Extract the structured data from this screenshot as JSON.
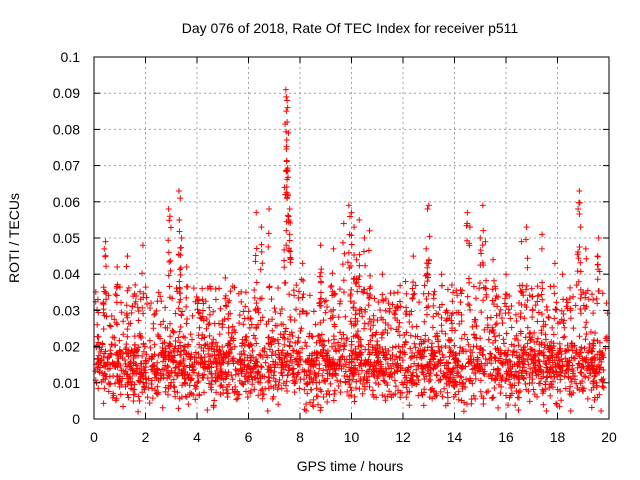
{
  "chart_data": {
    "type": "scatter",
    "title": "Day 076 of 2018, Rate Of TEC Index for receiver p511",
    "xlabel": "GPS time / hours",
    "ylabel": "ROTI / TECUs",
    "xlim": [
      0,
      20
    ],
    "ylim": [
      0,
      0.1
    ],
    "grid": true,
    "marker": "+",
    "series_color": "#ff0000",
    "xticks": [
      {
        "value": 0,
        "label": "0"
      },
      {
        "value": 2,
        "label": "2"
      },
      {
        "value": 4,
        "label": "4"
      },
      {
        "value": 6,
        "label": "6"
      },
      {
        "value": 8,
        "label": "8"
      },
      {
        "value": 10,
        "label": "10"
      },
      {
        "value": 12,
        "label": "12"
      },
      {
        "value": 14,
        "label": "14"
      },
      {
        "value": 16,
        "label": "16"
      },
      {
        "value": 18,
        "label": "18"
      },
      {
        "value": 20,
        "label": "20"
      }
    ],
    "yticks": [
      {
        "value": 0,
        "label": "0"
      },
      {
        "value": 0.01,
        "label": "0.01"
      },
      {
        "value": 0.02,
        "label": "0.02"
      },
      {
        "value": 0.03,
        "label": "0.03"
      },
      {
        "value": 0.04,
        "label": "0.04"
      },
      {
        "value": 0.05,
        "label": "0.05"
      },
      {
        "value": 0.06,
        "label": "0.06"
      },
      {
        "value": 0.07,
        "label": "0.07"
      },
      {
        "value": 0.08,
        "label": "0.08"
      },
      {
        "value": 0.09,
        "label": "0.09"
      },
      {
        "value": 0.1,
        "label": "0.1"
      }
    ],
    "baseline_band": {
      "x_range": [
        0.05,
        19.8
      ],
      "y_typical_range": [
        0.005,
        0.025
      ]
    },
    "notable_points": [
      {
        "x": 0.4,
        "y": 0.047
      },
      {
        "x": 0.45,
        "y": 0.049
      },
      {
        "x": 0.9,
        "y": 0.042
      },
      {
        "x": 1.3,
        "y": 0.045
      },
      {
        "x": 1.9,
        "y": 0.048
      },
      {
        "x": 2.9,
        "y": 0.058
      },
      {
        "x": 2.95,
        "y": 0.056
      },
      {
        "x": 3.3,
        "y": 0.063
      },
      {
        "x": 3.35,
        "y": 0.061
      },
      {
        "x": 3.4,
        "y": 0.05
      },
      {
        "x": 3.6,
        "y": 0.042
      },
      {
        "x": 5.1,
        "y": 0.039
      },
      {
        "x": 6.3,
        "y": 0.057
      },
      {
        "x": 6.5,
        "y": 0.053
      },
      {
        "x": 6.8,
        "y": 0.058
      },
      {
        "x": 7.4,
        "y": 0.064
      },
      {
        "x": 7.45,
        "y": 0.091
      },
      {
        "x": 7.47,
        "y": 0.089
      },
      {
        "x": 7.5,
        "y": 0.088
      },
      {
        "x": 7.52,
        "y": 0.086
      },
      {
        "x": 7.5,
        "y": 0.082
      },
      {
        "x": 7.55,
        "y": 0.079
      },
      {
        "x": 7.6,
        "y": 0.058
      },
      {
        "x": 7.6,
        "y": 0.051
      },
      {
        "x": 8.1,
        "y": 0.043
      },
      {
        "x": 8.8,
        "y": 0.048
      },
      {
        "x": 9.3,
        "y": 0.047
      },
      {
        "x": 9.7,
        "y": 0.054
      },
      {
        "x": 9.9,
        "y": 0.059
      },
      {
        "x": 10.0,
        "y": 0.057
      },
      {
        "x": 10.1,
        "y": 0.053
      },
      {
        "x": 10.3,
        "y": 0.055
      },
      {
        "x": 10.5,
        "y": 0.05
      },
      {
        "x": 10.7,
        "y": 0.052
      },
      {
        "x": 10.2,
        "y": 0.044
      },
      {
        "x": 11.2,
        "y": 0.04
      },
      {
        "x": 12.1,
        "y": 0.038
      },
      {
        "x": 12.4,
        "y": 0.045
      },
      {
        "x": 12.95,
        "y": 0.058
      },
      {
        "x": 13.0,
        "y": 0.059
      },
      {
        "x": 12.9,
        "y": 0.047
      },
      {
        "x": 13.5,
        "y": 0.04
      },
      {
        "x": 14.5,
        "y": 0.057
      },
      {
        "x": 14.6,
        "y": 0.053
      },
      {
        "x": 15.0,
        "y": 0.05
      },
      {
        "x": 15.1,
        "y": 0.059
      },
      {
        "x": 15.2,
        "y": 0.049
      },
      {
        "x": 15.5,
        "y": 0.044
      },
      {
        "x": 16.0,
        "y": 0.04
      },
      {
        "x": 16.6,
        "y": 0.049
      },
      {
        "x": 16.8,
        "y": 0.053
      },
      {
        "x": 17.4,
        "y": 0.051
      },
      {
        "x": 17.9,
        "y": 0.043
      },
      {
        "x": 18.2,
        "y": 0.04
      },
      {
        "x": 18.8,
        "y": 0.058
      },
      {
        "x": 18.85,
        "y": 0.063
      },
      {
        "x": 18.9,
        "y": 0.053
      },
      {
        "x": 19.1,
        "y": 0.047
      },
      {
        "x": 19.6,
        "y": 0.05
      },
      {
        "x": 19.55,
        "y": 0.045
      },
      {
        "x": 0.15,
        "y": 0.033
      },
      {
        "x": 1.6,
        "y": 0.037
      },
      {
        "x": 4.2,
        "y": 0.036
      },
      {
        "x": 5.9,
        "y": 0.035
      },
      {
        "x": 11.8,
        "y": 0.035
      },
      {
        "x": 13.9,
        "y": 0.037
      },
      {
        "x": 17.0,
        "y": 0.036
      },
      {
        "x": 19.9,
        "y": 0.032
      }
    ]
  }
}
